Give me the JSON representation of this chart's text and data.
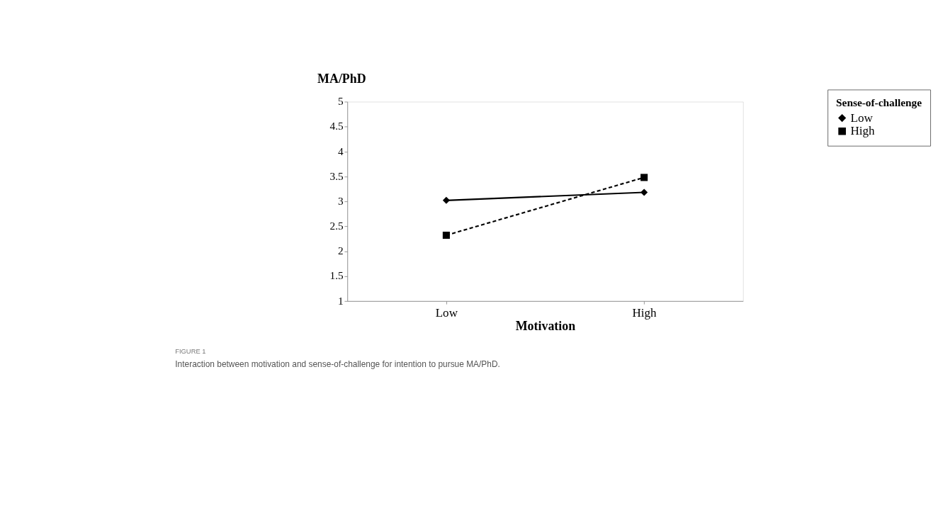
{
  "chart_data": {
    "type": "line",
    "xlabel": "Motivation",
    "ylabel": "MA/PhD",
    "legend_title": "Sense-of-challenge",
    "categories": [
      "Low",
      "High"
    ],
    "series": [
      {
        "name": "Low",
        "color": "#000000",
        "values": [
          3.02,
          3.18
        ],
        "marker": "diamond",
        "line_style": "solid"
      },
      {
        "name": "High",
        "color": "#000000",
        "values": [
          2.32,
          3.48
        ],
        "marker": "square",
        "line_style": "dashed"
      }
    ],
    "ylim": [
      1,
      5
    ],
    "yticks": [
      1,
      1.5,
      2,
      2.5,
      3,
      3.5,
      4,
      4.5,
      5
    ],
    "grid": false,
    "legend": "top right",
    "annotations": [
      "FIGURE 1",
      "Interaction between motivation and sense-of-challenge for intention to pursue MA/PhD."
    ]
  }
}
